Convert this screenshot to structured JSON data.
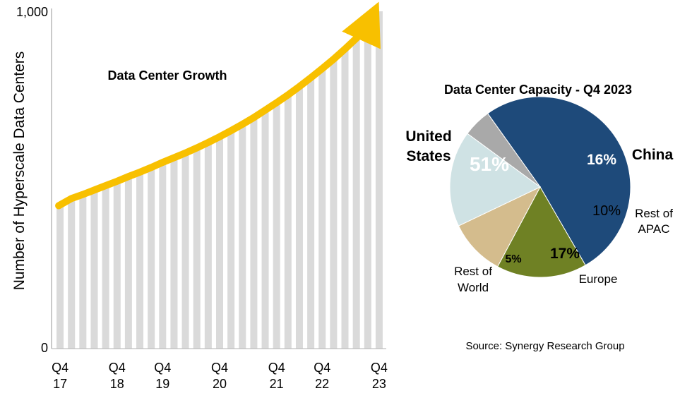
{
  "chart_data": [
    {
      "type": "bar",
      "title": "Data Center Growth",
      "ylabel": "Number of Hyperscale Data Centers",
      "xlabel": "",
      "ylim": [
        0,
        1000
      ],
      "y_ticks": [
        "1,000",
        "0"
      ],
      "x_ticks": [
        {
          "q": "Q4",
          "y": "17"
        },
        {
          "q": "Q4",
          "y": "18"
        },
        {
          "q": "Q4",
          "y": "19"
        },
        {
          "q": "Q4",
          "y": "20"
        },
        {
          "q": "Q4",
          "y": "21"
        },
        {
          "q": "Q4",
          "y": "22"
        },
        {
          "q": "Q4",
          "y": "23"
        }
      ],
      "values": [
        430,
        445,
        457,
        470,
        483,
        496,
        510,
        523,
        537,
        552,
        566,
        580,
        595,
        611,
        628,
        646,
        665,
        685,
        707,
        729,
        752,
        777,
        803,
        830,
        858,
        888,
        920,
        956,
        1000
      ],
      "trend_color": "#f8c000",
      "bar_color": "#dadada"
    },
    {
      "type": "pie",
      "title": "Data Center Capacity - Q4 2023",
      "slices": [
        {
          "label": "United States",
          "value": 51,
          "pct": "51%",
          "color": "#1e4a7a"
        },
        {
          "label": "China",
          "value": 16,
          "pct": "16%",
          "color": "#6f8124"
        },
        {
          "label": "Rest of APAC",
          "value": 10,
          "pct": "10%",
          "color": "#d4bc8d"
        },
        {
          "label": "Europe",
          "value": 17,
          "pct": "17%",
          "color": "#cfe2e4"
        },
        {
          "label": "Rest of World",
          "value": 5,
          "pct": "5%",
          "color": "#a9a9a9"
        }
      ],
      "source": "Source: Synergy Research Group"
    }
  ]
}
